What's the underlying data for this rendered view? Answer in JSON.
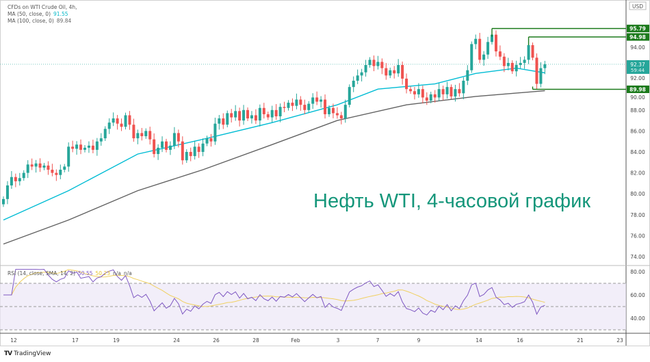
{
  "legend": {
    "symbol": "CFDs on WTI Crude Oil, 4h,",
    "ma50_label": "MA (50, close, 0)",
    "ma50_value": "91.55",
    "ma100_label": "MA (100, close, 0)",
    "ma100_value": "89.84",
    "rsi_label": "RSI (14, close, SMA, 14, 2)",
    "rsi_value": "50.55",
    "rsi_ma_value": "50.23",
    "na1": "n/a",
    "na2": "n/a"
  },
  "currency": "USD",
  "overlay_title": "Нефть WTI, 4-часовой график",
  "brand": "TradingView",
  "colors": {
    "up": "#26a69a",
    "down": "#ef5350",
    "ma50": "#00bcd4",
    "ma100": "#616161",
    "level": "#1b7a1b",
    "rsi": "#7e57c2",
    "rsi_ma": "#f0d060",
    "rsi_band": "#ede7f6"
  },
  "chart_data": [
    {
      "type": "candlestick",
      "timeframe": "4h",
      "x_tick_labels": [
        "12",
        "17",
        "19",
        "24",
        "26",
        "28",
        "Feb",
        "3",
        "7",
        "9",
        "14",
        "16",
        "21",
        "23"
      ],
      "y_tick_labels": [
        "74.00",
        "76.00",
        "78.00",
        "80.00",
        "82.00",
        "84.00",
        "86.00",
        "88.00",
        "90.00",
        "92.00",
        "94.00"
      ],
      "ylim": [
        73,
        98
      ],
      "closes": [
        79.5,
        80.8,
        81.6,
        81.2,
        81.5,
        82.0,
        82.8,
        82.6,
        82.9,
        82.5,
        82.7,
        82.3,
        82.0,
        81.8,
        82.3,
        82.6,
        84.5,
        84.3,
        84.7,
        84.2,
        84.4,
        84.6,
        84.2,
        85.0,
        85.3,
        86.2,
        86.8,
        87.2,
        86.7,
        86.4,
        87.5,
        86.6,
        85.3,
        85.8,
        85.5,
        86.0,
        85.2,
        83.8,
        84.4,
        85.0,
        84.2,
        84.6,
        85.8,
        85.0,
        83.2,
        84.0,
        83.6,
        84.5,
        84.0,
        84.8,
        85.3,
        85.0,
        86.7,
        87.2,
        86.6,
        87.7,
        87.3,
        87.9,
        87.0,
        88.0,
        87.2,
        87.5,
        87.0,
        88.2,
        87.6,
        87.3,
        88.0,
        87.4,
        88.3,
        88.2,
        88.7,
        88.4,
        89.0,
        88.5,
        88.0,
        88.6,
        89.2,
        88.8,
        89.0,
        87.6,
        88.2,
        87.7,
        87.5,
        87.2,
        88.5,
        90.2,
        90.8,
        91.3,
        91.6,
        92.3,
        92.8,
        92.2,
        92.6,
        92.0,
        91.3,
        91.8,
        91.5,
        92.3,
        91.0,
        90.0,
        89.8,
        89.5,
        90.0,
        89.2,
        88.9,
        89.5,
        89.2,
        90.0,
        89.5,
        90.2,
        89.3,
        90.0,
        89.6,
        90.8,
        91.8,
        94.3,
        94.8,
        92.8,
        93.3,
        94.5,
        95.2,
        93.6,
        93.1,
        92.2,
        92.5,
        91.7,
        92.3,
        92.5,
        92.8,
        94.2,
        93.0,
        90.5,
        92.0,
        92.37
      ],
      "first_open": 79.0,
      "ma50": {
        "name": "MA (50, close, 0)",
        "points": [
          [
            0,
            77.5
          ],
          [
            16,
            80.3
          ],
          [
            33,
            83.8
          ],
          [
            49,
            85.2
          ],
          [
            66,
            86.8
          ],
          [
            82,
            88.5
          ],
          [
            92,
            90.0
          ],
          [
            106,
            90.5
          ],
          [
            116,
            91.5
          ],
          [
            126,
            92.0
          ],
          [
            133,
            91.55
          ]
        ]
      },
      "ma100": {
        "name": "MA (100, close, 0)",
        "points": [
          [
            0,
            75.2
          ],
          [
            16,
            77.5
          ],
          [
            33,
            80.3
          ],
          [
            49,
            82.3
          ],
          [
            66,
            84.7
          ],
          [
            82,
            87.0
          ],
          [
            99,
            88.5
          ],
          [
            116,
            89.3
          ],
          [
            133,
            89.84
          ]
        ]
      },
      "levels": [
        {
          "value": 95.79,
          "label": "95.79",
          "from_index": 120
        },
        {
          "value": 94.98,
          "label": "94.98",
          "from_index": 129
        },
        {
          "value": 89.98,
          "label": "89.98",
          "from_index": 130
        }
      ],
      "last_price": {
        "value": 92.37,
        "label": "92.37",
        "countdown": "59:44"
      }
    },
    {
      "type": "line",
      "title": "RSI (14, close, SMA, 14, 2)",
      "y_tick_labels": [
        "40.00",
        "60.00",
        "80.00"
      ],
      "bands": [
        30,
        50,
        70
      ],
      "ylim": [
        28,
        82
      ],
      "last_values": {
        "rsi": 50.55,
        "rsi_ma": 50.23
      }
    }
  ]
}
